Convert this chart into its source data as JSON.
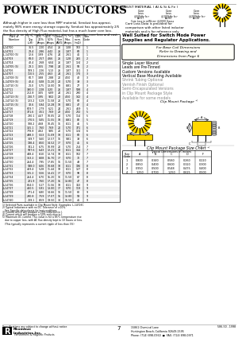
{
  "title": "POWER INDUCTORS",
  "subtitle": "SENDUST MATERIAL ( Al & Si & Fe )",
  "bg_color": "#ffffff",
  "description": "Although higher in core loss than MPP material, Sendust has approximately 98% more energy storage capacity. Sendust has approximately 2/5 the flux density of High Flux material, but has a much lower core loss. Sendust is an ideal tradeoff between storage capacity, core loss and cost.",
  "note_text": "Core Loss Data is provided for comparison with other listed inductor materials and is for reference only.",
  "table_data": [
    [
      "L-14700",
      "36.5",
      "2.20",
      "4.54",
      "26",
      "1.08",
      "103",
      "1"
    ],
    [
      "L-14701",
      "23.4",
      "2.86",
      "4.42",
      "26",
      "1.87",
      "68",
      "1"
    ],
    [
      "L-14700 (5)",
      "12.6",
      "3.99",
      "4.76",
      "24",
      "2.61",
      "41",
      "1"
    ],
    [
      "L-14703",
      "68.0",
      "2.57",
      "4.66",
      "26",
      "1.28",
      "265",
      "2"
    ],
    [
      "L-14704",
      "42.4",
      "2.68",
      "6.04",
      "26",
      "1.87",
      "124",
      "2"
    ],
    [
      "L-14705 (5)",
      "23.1",
      "3.55",
      "7.98",
      "24",
      "2.61",
      "58",
      "2"
    ],
    [
      "L-14706",
      "109.1",
      "2.26",
      "5.13",
      "26",
      "1.87",
      "351",
      "3"
    ],
    [
      "L-14707",
      "110.5",
      "2.55",
      "4.63",
      "24",
      "2.61",
      "170",
      "3"
    ],
    [
      "L-14708 (5)",
      "60.7",
      "3.88",
      "2.88",
      "20",
      "4.50",
      "42",
      "3"
    ],
    [
      "L-14709 (5)",
      "42.4",
      "5.08",
      "11.20",
      "20",
      "5.70",
      "39",
      "3"
    ],
    [
      "L-14710 (5)",
      "21.0",
      "5.75",
      "13.00",
      "18",
      "8.81",
      "27",
      "3"
    ],
    [
      "L-14711",
      "390.0",
      "2.28",
      "3.20",
      "26",
      "1.87",
      "598",
      "4"
    ],
    [
      "L-14712",
      "252.8",
      "3.05",
      "6.89",
      "24",
      "2.61",
      "290",
      "4"
    ],
    [
      "L-14713 (5)",
      "210.7",
      "3.95",
      "9.02",
      "22",
      "4.50",
      "142",
      "4"
    ],
    [
      "L-14714 (5)",
      "123.2",
      "5.19",
      "11.58",
      "20",
      "5.70",
      "68",
      "4"
    ],
    [
      "L-14715 (5)",
      "32.6",
      "5.94",
      "12.28",
      "18",
      "8.81",
      "47",
      "4"
    ],
    [
      "L-14716",
      "609.7",
      "2.79",
      "6.21",
      "24",
      "2.61",
      "469",
      "5"
    ],
    [
      "L-14717",
      "371.6",
      "3.51",
      "7.69",
      "22",
      "4.50",
      "232",
      "5"
    ],
    [
      "L-14718",
      "230.1",
      "4.47",
      "10.05",
      "20",
      "5.70",
      "114",
      "5"
    ],
    [
      "L-14719",
      "170.5",
      "5.05",
      "11.55",
      "18",
      "8.81",
      "82",
      "5"
    ],
    [
      "L-14720",
      "108.2",
      "4.68",
      "10.45",
      "16",
      "8.11",
      "46",
      "5"
    ],
    [
      "L-14721",
      "355.1",
      "7.60",
      "7.69",
      "20",
      "5.70",
      "371",
      "6"
    ],
    [
      "L-14722",
      "778.8",
      "4.62",
      "9.85",
      "20",
      "5.70",
      "124",
      "6"
    ],
    [
      "L-14723",
      "498.3",
      "5.53",
      "11.09",
      "18",
      "8.11",
      "68",
      "6"
    ],
    [
      "L-14724",
      "149.7",
      "5.60",
      "12.57",
      "16",
      "9.81",
      "39",
      "6"
    ],
    [
      "L-14725",
      "198.4",
      "8.50",
      "14.52",
      "17",
      "9.70",
      "45",
      "6"
    ],
    [
      "L-14726",
      "741.2",
      "6.75",
      "10.99",
      "20",
      "5.70",
      "254",
      "7"
    ],
    [
      "L-14727",
      "587.6",
      "6.43",
      "12.21",
      "18",
      "8.11",
      "144",
      "7"
    ],
    [
      "L-14728",
      "448.4",
      "8.10",
      "13.74",
      "18",
      "8.11",
      "102",
      "7"
    ],
    [
      "L-14729",
      "363.2",
      "8.08",
      "15.70",
      "17",
      "9.70",
      "70",
      "7"
    ],
    [
      "L-14730",
      "264.4",
      "7.95",
      "17.85",
      "16",
      "11.50",
      "49",
      "7"
    ],
    [
      "L-14731",
      "598.0",
      "6.06",
      "10.68",
      "18",
      "8.11",
      "196",
      "8"
    ],
    [
      "L-14732",
      "469.4",
      "5.28",
      "11.44",
      "18",
      "8.11",
      "137",
      "8"
    ],
    [
      "L-14733",
      "365.2",
      "5.56",
      "13.41",
      "17",
      "9.70",
      "98",
      "8"
    ],
    [
      "L-14734",
      "264.4",
      "6.70",
      "15.20",
      "16",
      "11.50",
      "67",
      "8"
    ],
    [
      "L-14735",
      "221.9",
      "7.60",
      "17.20",
      "15",
      "13.80",
      "47",
      "8"
    ],
    [
      "L-14736",
      "804.0",
      "5.17",
      "11.56",
      "18",
      "8.11",
      "313",
      "9"
    ],
    [
      "L-14737",
      "460.5",
      "5.91",
      "13.00",
      "17",
      "9.70",
      "119",
      "9"
    ],
    [
      "L-14738",
      "271.4",
      "6.80",
      "14.66",
      "16",
      "11.50",
      "80",
      "9"
    ],
    [
      "L-14739",
      "290.8",
      "7.59",
      "17.07",
      "15",
      "13.80",
      "59",
      "9"
    ],
    [
      "L-14740",
      "219.1",
      "8.59",
      "19.50",
      "14",
      "16.50",
      "41",
      "9"
    ]
  ],
  "size_chart_data": [
    [
      "1",
      "0.800",
      "0.340",
      "0.580",
      "0.260",
      "0.220"
    ],
    [
      "2",
      "0.850",
      "0.400",
      "0.600",
      "0.320",
      "0.300"
    ],
    [
      "3",
      "0.950",
      "0.500",
      "0.548",
      "0.475",
      "0.400"
    ],
    [
      "4",
      "1.250",
      "0.700",
      "1.250",
      "0.625",
      "0.500"
    ]
  ],
  "yellow_color": "#FFD700",
  "doc_num": "586-50 - 1998"
}
